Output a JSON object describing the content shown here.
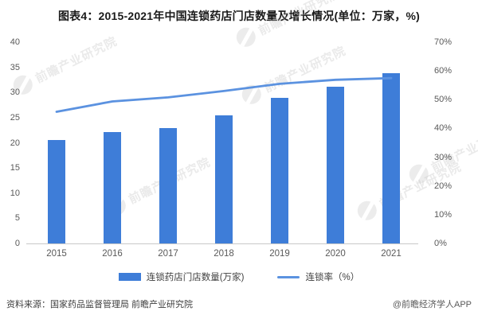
{
  "title": "图表4：2015-2021年中国连锁药店门店数量及增长情况(单位：万家，%)",
  "watermark": {
    "brand": "前瞻产业研究院"
  },
  "chart_data": {
    "type": "bar",
    "subtype": "bar+line dual axis",
    "title": "图表4：2015-2021年中国连锁药店门店数量及增长情况(单位：万家，%)",
    "categories": [
      "2015",
      "2016",
      "2017",
      "2018",
      "2019",
      "2020",
      "2021"
    ],
    "series": [
      {
        "name": "连锁药店门店数量(万家)",
        "type": "bar",
        "axis": "left",
        "color": "#3e7dd8",
        "values": [
          20.5,
          22.1,
          22.9,
          25.4,
          28.9,
          31.2,
          33.8
        ]
      },
      {
        "name": "连锁率（%）",
        "type": "line",
        "axis": "right",
        "color": "#5b92e0",
        "values": [
          45.8,
          49.4,
          50.8,
          53.0,
          55.5,
          56.9,
          57.5
        ]
      }
    ],
    "left_axis": {
      "min": 0,
      "max": 40,
      "step": 5,
      "ticks": [
        "0",
        "5",
        "10",
        "15",
        "20",
        "25",
        "30",
        "35",
        "40"
      ]
    },
    "right_axis": {
      "min": 0,
      "max": 70,
      "step": 10,
      "ticks": [
        "0%",
        "10%",
        "20%",
        "30%",
        "40%",
        "50%",
        "60%",
        "70%"
      ]
    },
    "grid": false,
    "legend_position": "bottom"
  },
  "legend": {
    "bar_label": "连锁药店门店数量(万家)",
    "line_label": "连锁率（%）"
  },
  "footer": {
    "source": "资料来源：国家药品监督管理局 前瞻产业研究院",
    "credit": "@前瞻经济学人APP"
  }
}
